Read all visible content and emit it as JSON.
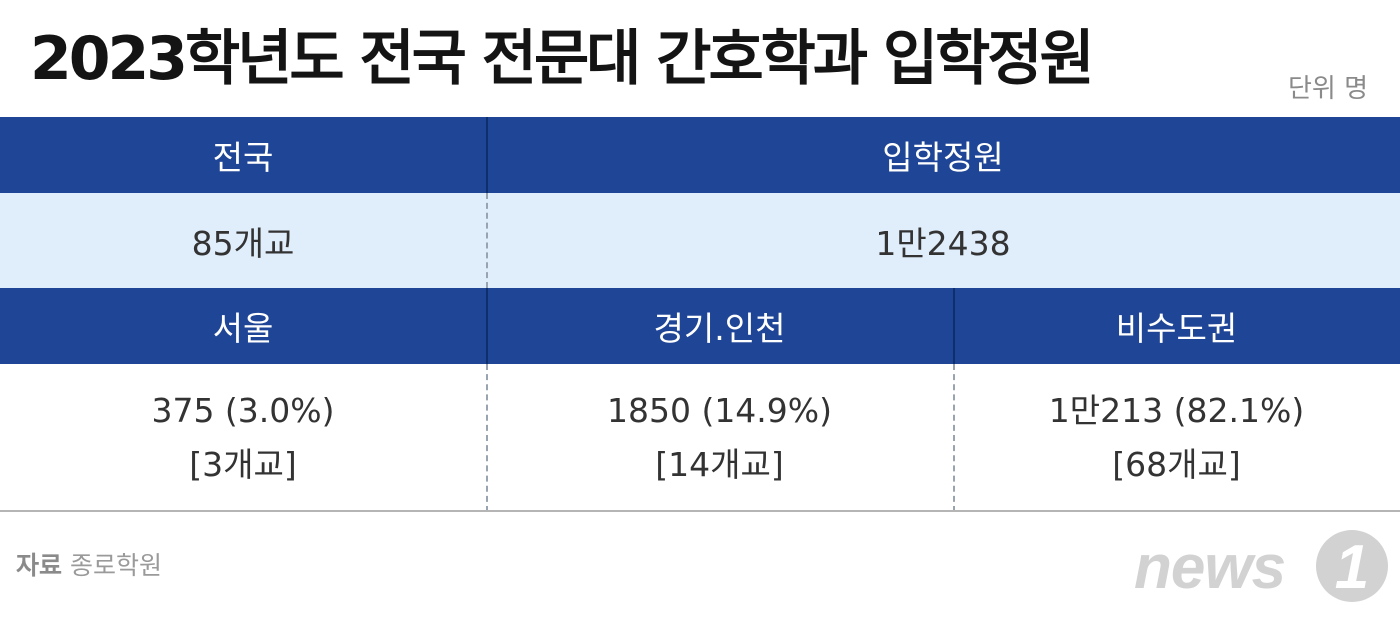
{
  "title": "2023학년도 전국 전문대 간호학과 입학정원",
  "unit": "단위 명",
  "total": {
    "header_region": "전국",
    "header_quota": "입학정원",
    "schools": "85개교",
    "quota": "1만2438"
  },
  "regions": [
    {
      "name": "서울",
      "line1": "375 (3.0%)",
      "line2": "[3개교]"
    },
    {
      "name": "경기.인천",
      "line1": "1850 (14.9%)",
      "line2": "[14개교]"
    },
    {
      "name": "비수도권",
      "line1": "1만213 (82.1%)",
      "line2": "[68개교]"
    }
  ],
  "source": {
    "label": "자료",
    "text": "종로학원"
  },
  "logo": {
    "text": "news",
    "mark": "1"
  },
  "colors": {
    "header_bg": "#1f4596",
    "light_bg": "#e0edfb",
    "title": "#141414",
    "logo_gray": "#d2d2d2"
  }
}
